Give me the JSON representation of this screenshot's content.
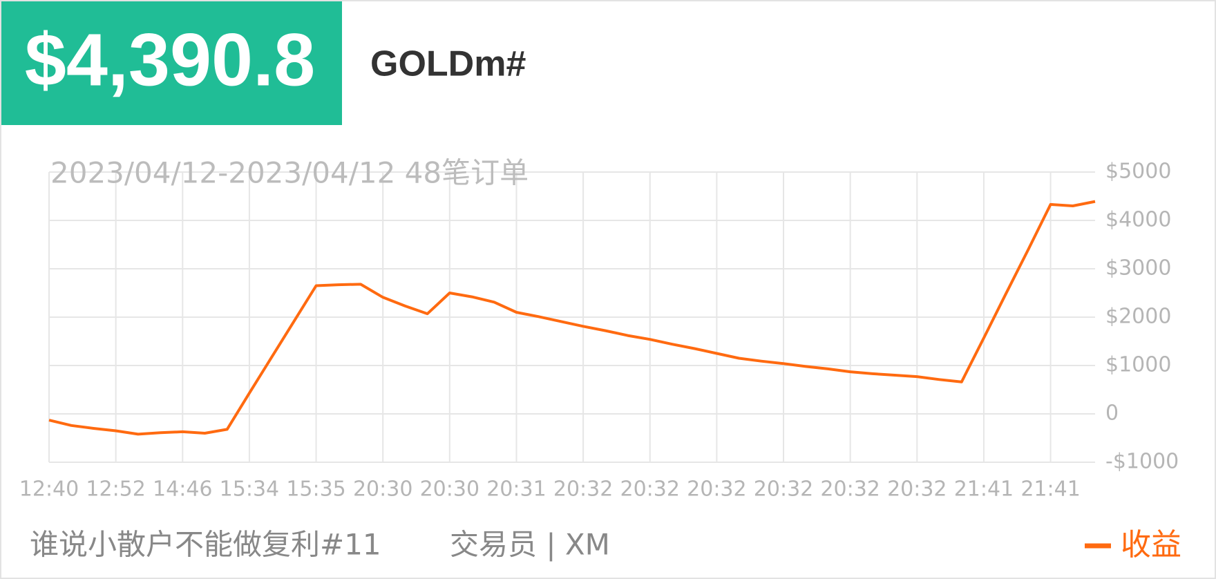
{
  "header": {
    "price": "$4,390.8",
    "symbol": "GOLDm#"
  },
  "chart_data": {
    "type": "line",
    "subtitle": "2023/04/12-2023/04/12 48笔订单",
    "categories": [
      "12:40",
      null,
      null,
      "12:52",
      null,
      null,
      "14:46",
      null,
      null,
      "15:34",
      null,
      null,
      "15:35",
      null,
      null,
      "20:30",
      null,
      null,
      "20:30",
      null,
      null,
      "20:31",
      null,
      null,
      "20:32",
      null,
      null,
      "20:32",
      null,
      null,
      "20:32",
      null,
      null,
      "20:32",
      null,
      null,
      "20:32",
      null,
      null,
      "20:32",
      null,
      null,
      "21:41",
      null,
      null,
      "21:41",
      null,
      null
    ],
    "series": [
      {
        "name": "收益",
        "color": "#ff6a10",
        "values": [
          -130,
          -240,
          -300,
          -350,
          -420,
          -390,
          -370,
          -400,
          -320,
          430,
          1170,
          1910,
          2650,
          2670,
          2680,
          2410,
          2230,
          2070,
          2500,
          2420,
          2310,
          2100,
          2010,
          1910,
          1810,
          1720,
          1620,
          1540,
          1440,
          1350,
          1250,
          1150,
          1090,
          1040,
          980,
          930,
          870,
          830,
          800,
          770,
          710,
          660,
          1570,
          2490,
          3400,
          4330,
          4300,
          4390.8
        ]
      }
    ],
    "ylim": [
      -1000,
      5000
    ],
    "yticks": [
      {
        "value": -1000,
        "label": "-$1000"
      },
      0,
      {
        "value": 1000,
        "label": "$1000"
      },
      {
        "value": 2000,
        "label": "$2000"
      },
      {
        "value": 3000,
        "label": "$3000"
      },
      {
        "value": 4000,
        "label": "$4000"
      },
      {
        "value": 5000,
        "label": "$5000"
      }
    ],
    "grid": true
  },
  "footer": {
    "name": "谁说小散户不能做复利#11",
    "trader": "交易员 | XM"
  }
}
